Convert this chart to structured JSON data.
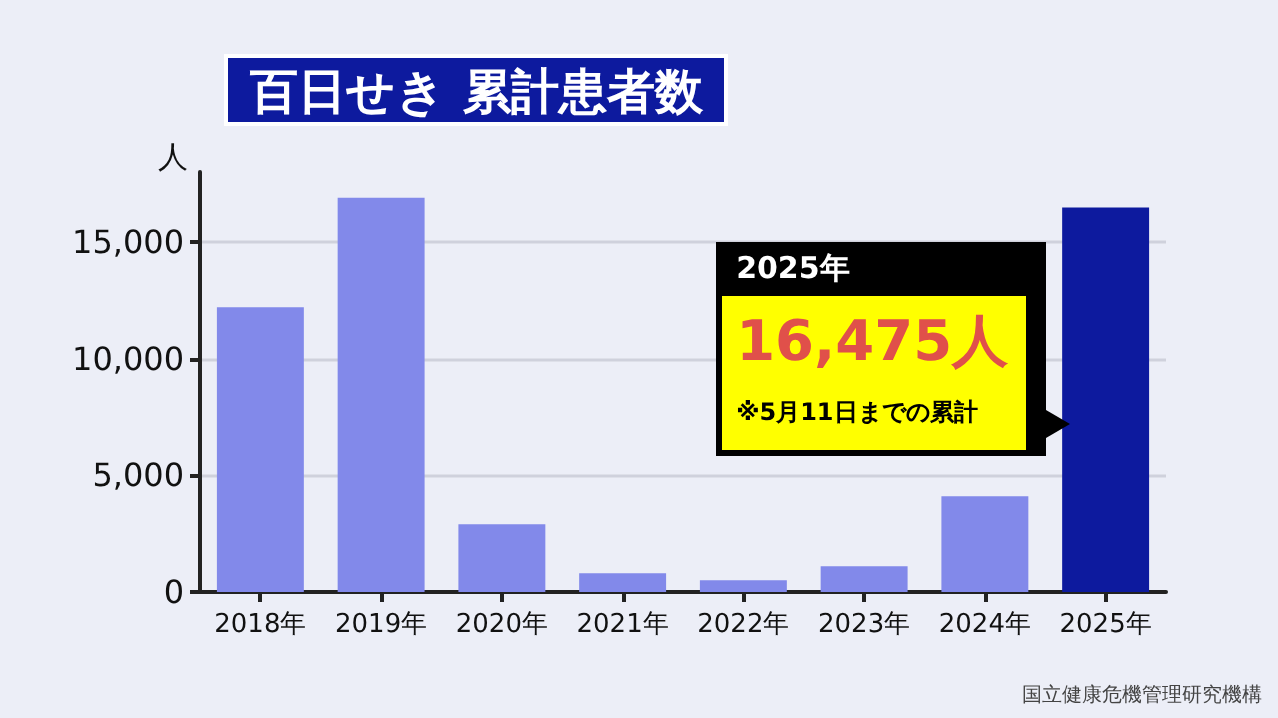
{
  "chart_data": {
    "type": "bar",
    "title": "百日せき 累計患者数",
    "ylabel": "人",
    "categories": [
      "2018年",
      "2019年",
      "2020年",
      "2021年",
      "2022年",
      "2023年",
      "2024年",
      "2025年"
    ],
    "values": [
      12200,
      16900,
      2900,
      800,
      500,
      1100,
      4100,
      16475
    ],
    "colors": [
      "#8289ea",
      "#8289ea",
      "#8289ea",
      "#8289ea",
      "#8289ea",
      "#8289ea",
      "#8289ea",
      "#0d1a9e"
    ],
    "ylim": [
      0,
      18000
    ],
    "yticks": [
      {
        "value": 0,
        "label": "0"
      },
      {
        "value": 5000,
        "label": "5,000"
      },
      {
        "value": 10000,
        "label": "10,000"
      },
      {
        "value": 15000,
        "label": "15,000"
      }
    ],
    "grid": "y",
    "annotations": [
      "2025年",
      "16,475人",
      "※5月11日までの累計",
      "国立健康危機管理研究機構"
    ]
  }
}
